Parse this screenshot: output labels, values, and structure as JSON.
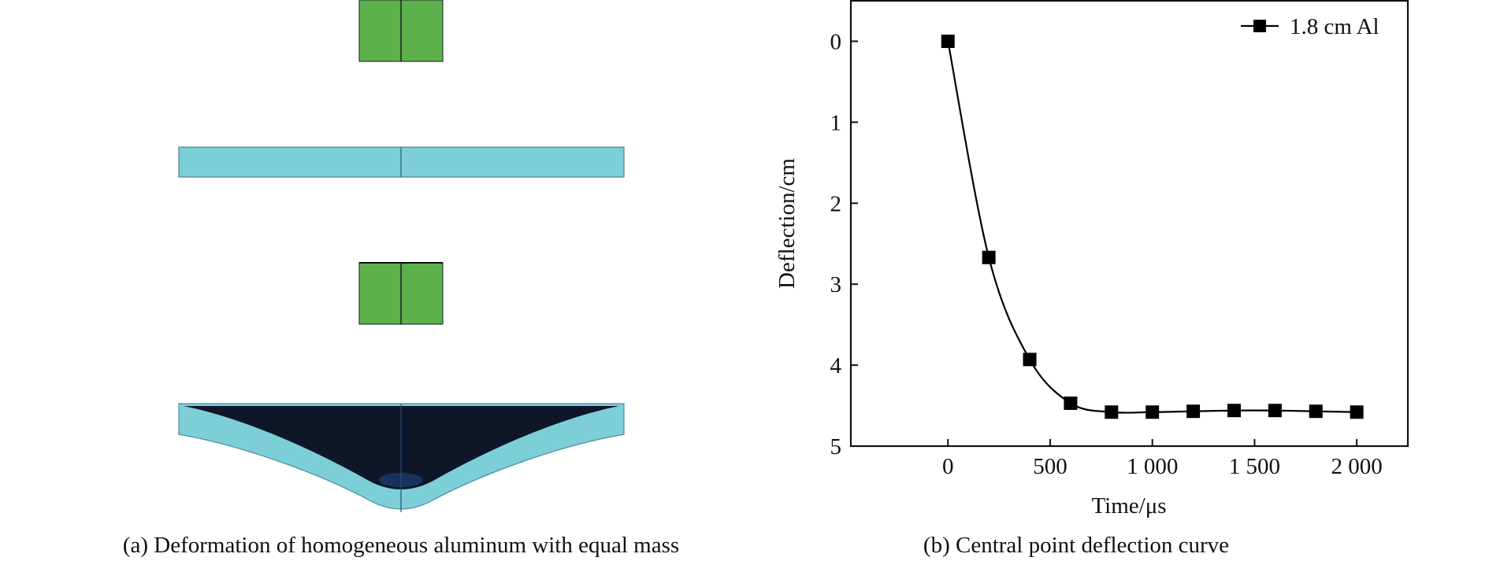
{
  "panel_a": {
    "caption": "(a) Deformation of homogeneous aluminum with equal mass",
    "colors": {
      "projectile": "#5db14a",
      "plate": "#7ccfd6",
      "crater": "#0e1628",
      "edge": "#2a3a40"
    }
  },
  "panel_b": {
    "caption": "(b) Central point deflection curve"
  },
  "chart_data": {
    "type": "line",
    "title": "",
    "xlabel": "Time/μs",
    "ylabel": "Deflection/cm",
    "xlim": [
      -475,
      2250
    ],
    "ylim": [
      5,
      -0.5
    ],
    "y_inverted": true,
    "x_ticks": [
      0,
      500,
      1000,
      1500,
      2000
    ],
    "x_tick_labels": [
      "0",
      "500",
      "1 000",
      "1 500",
      "2 000"
    ],
    "y_ticks": [
      0,
      1,
      2,
      3,
      4,
      5
    ],
    "y_tick_labels": [
      "0",
      "1",
      "2",
      "3",
      "4",
      "5"
    ],
    "grid": false,
    "legend_position": "top-right",
    "marker": "filled-square",
    "line_color": "#000000",
    "series": [
      {
        "name": "1.8 cm Al",
        "x": [
          0,
          200,
          400,
          600,
          800,
          1000,
          1200,
          1400,
          1600,
          1800,
          2000
        ],
        "y": [
          0,
          2.67,
          3.93,
          4.47,
          4.58,
          4.58,
          4.57,
          4.56,
          4.56,
          4.57,
          4.58
        ]
      }
    ]
  }
}
